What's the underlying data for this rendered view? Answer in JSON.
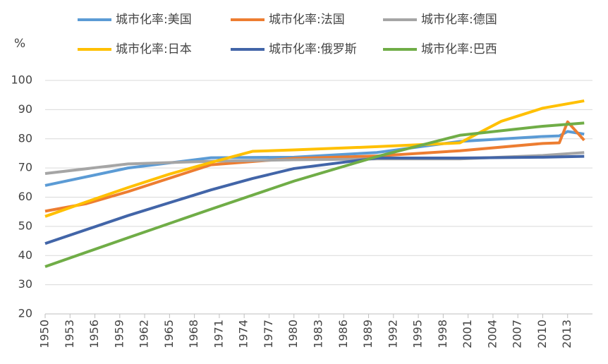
{
  "chart_data": {
    "type": "line",
    "y_label": "%",
    "xlim": [
      1950,
      2016
    ],
    "xticks": [
      1950,
      1953,
      1956,
      1959,
      1962,
      1965,
      1968,
      1971,
      1974,
      1977,
      1980,
      1983,
      1986,
      1989,
      1992,
      1995,
      1998,
      2001,
      2004,
      2007,
      2010,
      2013
    ],
    "ylim": [
      20,
      100
    ],
    "yticks": [
      20,
      30,
      40,
      50,
      60,
      70,
      80,
      90,
      100
    ],
    "grid": true,
    "legend": "top",
    "series": [
      {
        "name": "城市化率:美国",
        "color": "#5b9bd5",
        "x": [
          1950,
          1960,
          1970,
          1980,
          1990,
          2000,
          2010,
          2012,
          2013,
          2015
        ],
        "values": [
          64,
          70,
          73.5,
          73.7,
          75.3,
          79.1,
          80.8,
          81,
          82.5,
          81.6
        ]
      },
      {
        "name": "城市化率:法国",
        "color": "#ed7d31",
        "x": [
          1950,
          1955,
          1960,
          1970,
          1980,
          1990,
          2000,
          2010,
          2012,
          2013,
          2015
        ],
        "values": [
          55.2,
          57.8,
          61.9,
          71.1,
          73.3,
          74.1,
          75.9,
          78.4,
          78.6,
          85.8,
          79.5
        ]
      },
      {
        "name": "城市化率:德国",
        "color": "#a5a5a5",
        "x": [
          1950,
          1960,
          1970,
          1980,
          1990,
          2000,
          2010,
          2015
        ],
        "values": [
          68.1,
          71.4,
          72.3,
          72.8,
          73.1,
          73.1,
          74.3,
          75.3
        ]
      },
      {
        "name": "城市化率:日本",
        "color": "#ffc000",
        "x": [
          1950,
          1955,
          1960,
          1965,
          1970,
          1975,
          1980,
          1990,
          2000,
          2005,
          2010,
          2015
        ],
        "values": [
          53.4,
          58.4,
          63.3,
          67.9,
          71.9,
          75.7,
          76.2,
          77.3,
          78.6,
          86,
          90.5,
          93
        ]
      },
      {
        "name": "城市化率:俄罗斯",
        "color": "#4265a8",
        "x": [
          1950,
          1960,
          1970,
          1975,
          1980,
          1990,
          2000,
          2010,
          2015
        ],
        "values": [
          44.1,
          53.7,
          62.5,
          66.4,
          69.8,
          73.4,
          73.4,
          73.7,
          74
        ]
      },
      {
        "name": "城市化率:巴西",
        "color": "#70ad47",
        "x": [
          1950,
          1960,
          1970,
          1980,
          1990,
          2000,
          2010,
          2015
        ],
        "values": [
          36.2,
          46.1,
          55.9,
          65.5,
          73.9,
          81.2,
          84.3,
          85.4
        ]
      }
    ]
  }
}
